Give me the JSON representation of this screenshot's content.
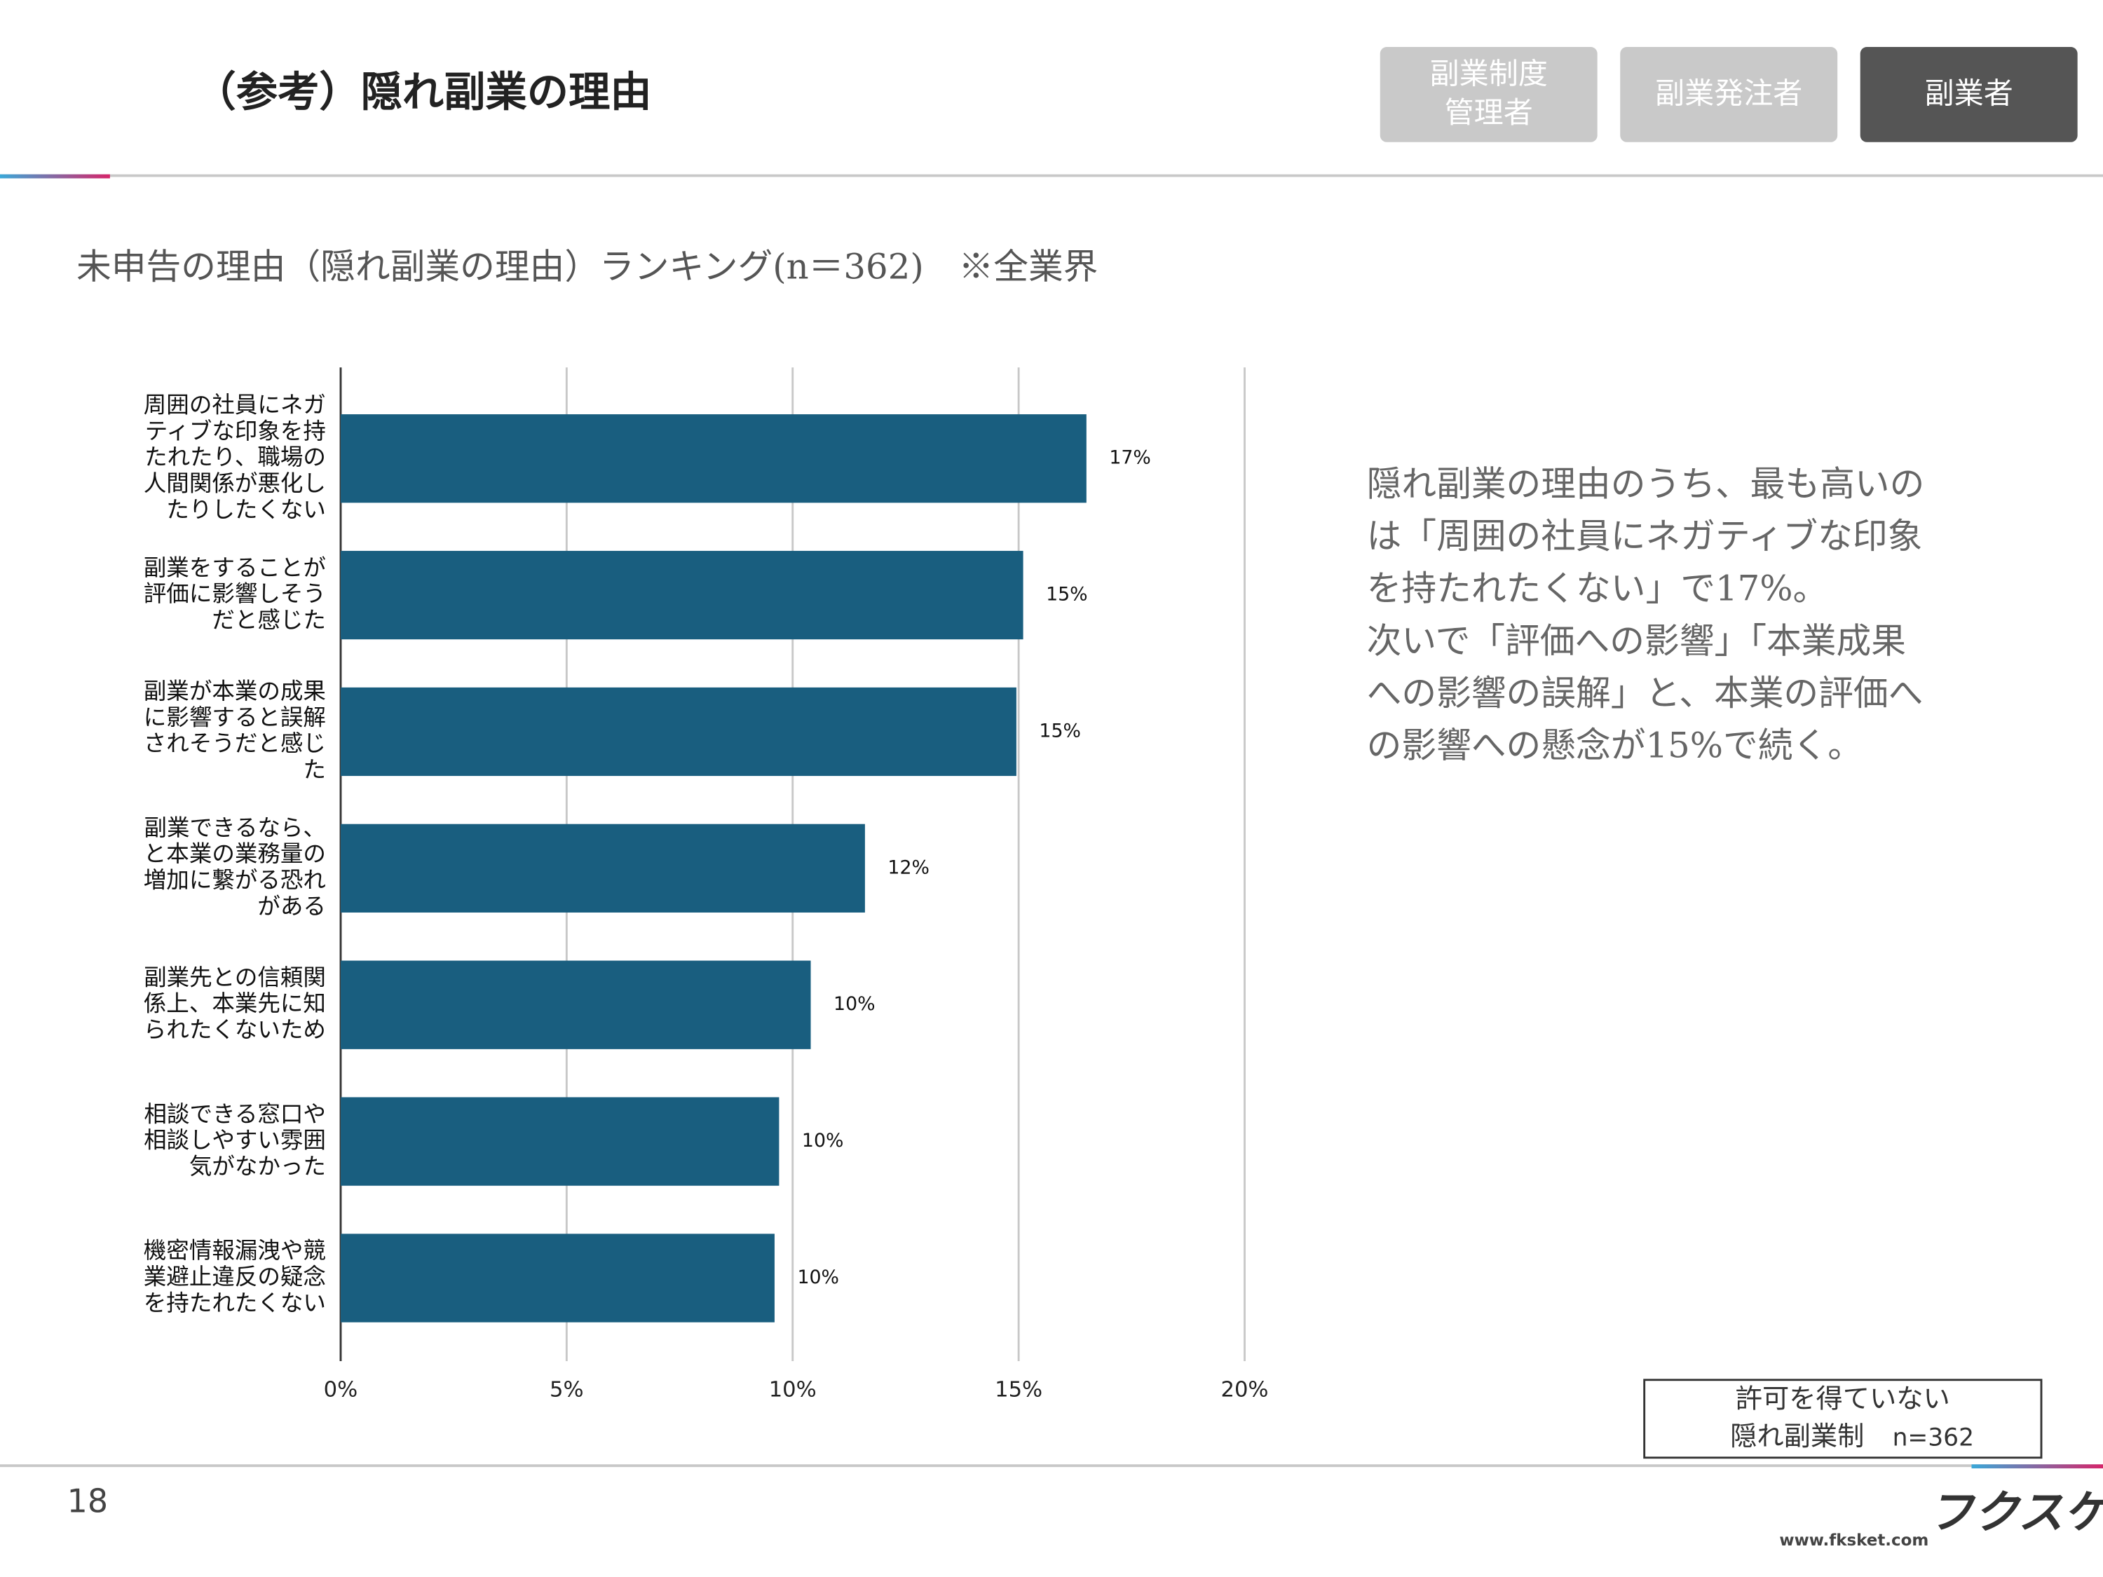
{
  "header": {
    "title": "（参考）隠れ副業の理由",
    "tabs": [
      {
        "lines": [
          "副業制度",
          "管理者"
        ]
      },
      {
        "lines": [
          "副業発注者"
        ]
      },
      {
        "lines": [
          "副業者"
        ]
      }
    ]
  },
  "chart_data": {
    "type": "bar",
    "orientation": "horizontal",
    "subtitle": "未申告の理由（隠れ副業の理由）ランキング(n＝362)　※全業界",
    "categories": [
      "周囲の社員にネガティブな印象を持たれたり、職場の人間関係が悪化したりしたくない",
      "副業をすることが評価に影響しそうだと感じた",
      "副業が本業の成果に影響すると誤解されそうだと感じた",
      "副業できるなら、と本業の業務量の増加に繋がる恐れがある",
      "副業先との信頼関係上、本業先に知られたくないため",
      "相談できる窓口や相談しやすい雰囲気がなかった",
      "機密情報漏洩や競業避止違反の疑念を持たれたくない"
    ],
    "series": [
      {
        "name": "許可を得ていない隠れ副業制",
        "color": "#195e7f",
        "values": [
          16.5,
          15.1,
          14.95,
          11.6,
          10.4,
          9.7,
          9.6
        ],
        "value_labels": [
          "17%",
          "15%",
          "15%",
          "12%",
          "10%",
          "10%",
          "10%"
        ]
      }
    ],
    "legend_note": "n=362",
    "xlim": [
      0,
      20
    ],
    "xticks": [
      {
        "value": 0,
        "label": "0%"
      },
      {
        "value": 5,
        "label": "5%"
      },
      {
        "value": 10,
        "label": "10%"
      },
      {
        "value": 15,
        "label": "15%"
      },
      {
        "value": 20,
        "label": "20%"
      }
    ],
    "grid": true,
    "legend_position": "bottom-right"
  },
  "body": {
    "lines": [
      "隠れ副業の理由のうち、最も高いの",
      "は「周囲の社員にネガティブな印象",
      "を持たれたくない」で17%。",
      "次いで「評価への影響」「本業成果",
      "への影響の誤解」と、本業の評価へ",
      "の影響への懸念が15%で続く。"
    ]
  },
  "footer": {
    "page": "18",
    "logo": "フクスケ",
    "url": "www.fksket.com"
  }
}
